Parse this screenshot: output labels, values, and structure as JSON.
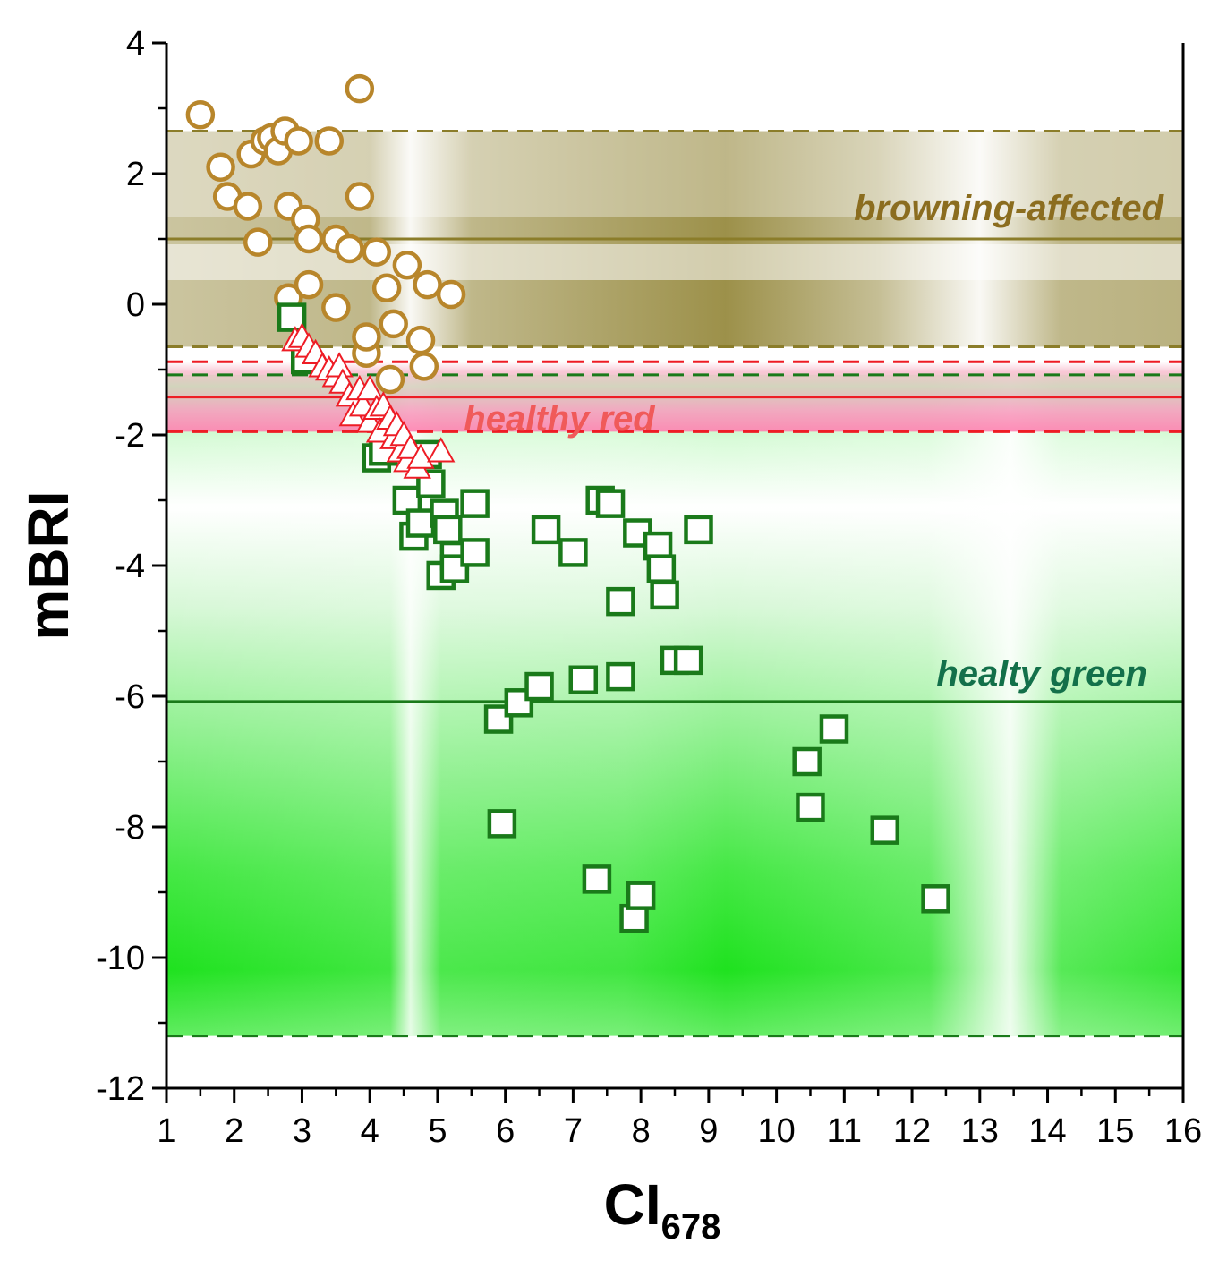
{
  "chart_data": {
    "type": "scatter",
    "title": "",
    "xlabel": "CI",
    "xlabel_sub": "678",
    "ylabel": "mBRI",
    "xlim": [
      1,
      16
    ],
    "ylim": [
      -12,
      4
    ],
    "xticks": [
      1,
      2,
      3,
      4,
      5,
      6,
      7,
      8,
      9,
      10,
      11,
      12,
      13,
      14,
      15,
      16
    ],
    "yticks": [
      4,
      2,
      0,
      -2,
      -4,
      -6,
      -8,
      -10,
      -12
    ],
    "bands": [
      {
        "name": "browning-affected",
        "color": "#8b7d2a",
        "lower": -0.65,
        "upper": 2.65,
        "mean": 1.0,
        "label": "browning-affected",
        "label_color": "#8b6d1f"
      },
      {
        "name": "healthy red",
        "color": "#ee1c25",
        "lower": -1.95,
        "upper": -0.88,
        "mean": -1.42,
        "label": "healthy red",
        "label_color": "#f05a5a"
      },
      {
        "name": "healty green",
        "color": "#1a7a1a",
        "lower": -11.2,
        "upper": -1.08,
        "mean": -6.08,
        "label": "healty green",
        "label_color": "#13704a"
      }
    ],
    "series": [
      {
        "name": "browning-affected",
        "marker": "circle",
        "color": "#b8862b",
        "points": [
          [
            1.5,
            2.9
          ],
          [
            1.8,
            2.1
          ],
          [
            1.9,
            1.65
          ],
          [
            2.2,
            1.5
          ],
          [
            2.25,
            2.3
          ],
          [
            2.35,
            0.95
          ],
          [
            2.45,
            2.5
          ],
          [
            2.55,
            2.55
          ],
          [
            2.65,
            2.35
          ],
          [
            2.75,
            2.65
          ],
          [
            2.8,
            1.5
          ],
          [
            2.8,
            0.1
          ],
          [
            2.95,
            2.5
          ],
          [
            3.05,
            1.3
          ],
          [
            3.1,
            1.0
          ],
          [
            3.1,
            0.3
          ],
          [
            3.4,
            2.5
          ],
          [
            3.5,
            1.0
          ],
          [
            3.5,
            -0.05
          ],
          [
            3.7,
            0.85
          ],
          [
            3.85,
            3.3
          ],
          [
            3.85,
            1.65
          ],
          [
            3.95,
            -0.75
          ],
          [
            3.95,
            -0.5
          ],
          [
            4.1,
            0.8
          ],
          [
            4.25,
            0.25
          ],
          [
            4.3,
            -1.15
          ],
          [
            4.35,
            -0.3
          ],
          [
            4.55,
            0.6
          ],
          [
            4.75,
            -0.55
          ],
          [
            4.8,
            -0.95
          ],
          [
            4.85,
            0.3
          ],
          [
            5.2,
            0.15
          ]
        ]
      },
      {
        "name": "healthy red",
        "marker": "triangle",
        "color": "#ee1c25",
        "points": [
          [
            2.9,
            -0.55
          ],
          [
            3.0,
            -0.5
          ],
          [
            3.1,
            -0.65
          ],
          [
            3.2,
            -0.75
          ],
          [
            3.3,
            -0.95
          ],
          [
            3.4,
            -1.0
          ],
          [
            3.5,
            -1.1
          ],
          [
            3.55,
            -0.95
          ],
          [
            3.6,
            -1.2
          ],
          [
            3.7,
            -1.4
          ],
          [
            3.75,
            -1.7
          ],
          [
            3.85,
            -1.3
          ],
          [
            3.9,
            -1.55
          ],
          [
            4.0,
            -1.3
          ],
          [
            4.0,
            -1.8
          ],
          [
            4.1,
            -1.6
          ],
          [
            4.15,
            -1.95
          ],
          [
            4.2,
            -1.55
          ],
          [
            4.3,
            -1.75
          ],
          [
            4.35,
            -2.05
          ],
          [
            4.4,
            -1.85
          ],
          [
            4.45,
            -2.25
          ],
          [
            4.5,
            -2.0
          ],
          [
            4.55,
            -2.4
          ],
          [
            4.6,
            -2.2
          ],
          [
            4.7,
            -2.5
          ],
          [
            4.75,
            -2.35
          ],
          [
            5.05,
            -2.25
          ]
        ]
      },
      {
        "name": "healty green",
        "marker": "square",
        "color": "#1a7a1a",
        "points": [
          [
            2.85,
            -0.2
          ],
          [
            3.05,
            -0.85
          ],
          [
            4.1,
            -2.35
          ],
          [
            4.2,
            -2.25
          ],
          [
            4.55,
            -3.0
          ],
          [
            4.65,
            -3.55
          ],
          [
            4.75,
            -3.35
          ],
          [
            4.85,
            -2.3
          ],
          [
            4.9,
            -2.75
          ],
          [
            5.05,
            -4.15
          ],
          [
            5.1,
            -3.2
          ],
          [
            5.15,
            -3.45
          ],
          [
            5.25,
            -3.85
          ],
          [
            5.25,
            -4.05
          ],
          [
            5.55,
            -3.05
          ],
          [
            5.55,
            -3.8
          ],
          [
            5.9,
            -6.35
          ],
          [
            5.95,
            -7.95
          ],
          [
            6.2,
            -6.1
          ],
          [
            6.5,
            -5.85
          ],
          [
            6.6,
            -3.45
          ],
          [
            7.0,
            -3.8
          ],
          [
            7.15,
            -5.75
          ],
          [
            7.35,
            -8.8
          ],
          [
            7.4,
            -3.0
          ],
          [
            7.55,
            -3.05
          ],
          [
            7.7,
            -5.7
          ],
          [
            7.7,
            -4.55
          ],
          [
            7.9,
            -9.4
          ],
          [
            7.95,
            -3.5
          ],
          [
            8.0,
            -9.05
          ],
          [
            8.25,
            -3.7
          ],
          [
            8.3,
            -4.05
          ],
          [
            8.35,
            -4.45
          ],
          [
            8.5,
            -5.45
          ],
          [
            8.7,
            -5.45
          ],
          [
            8.85,
            -3.45
          ],
          [
            10.45,
            -7.0
          ],
          [
            10.5,
            -7.7
          ],
          [
            10.85,
            -6.5
          ],
          [
            11.6,
            -8.05
          ],
          [
            12.35,
            -9.1
          ]
        ]
      }
    ]
  }
}
